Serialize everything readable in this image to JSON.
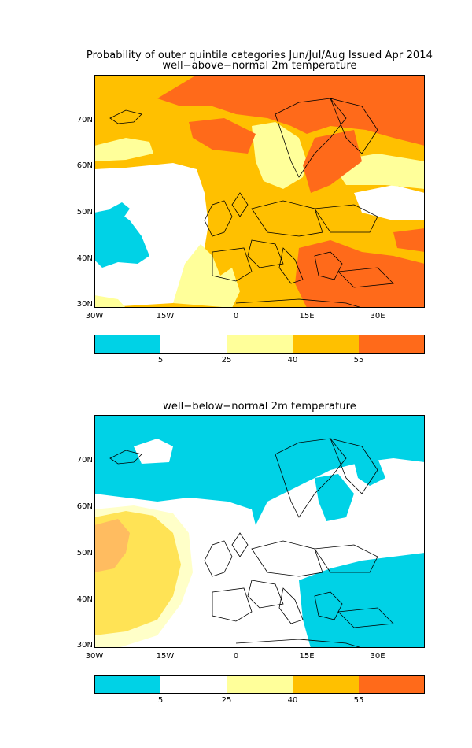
{
  "title_line1": "Probability of outer quintile categories Jun/Jul/Aug Issued Apr 2014",
  "panels": [
    {
      "subtitle": "well−above−normal 2m temperature"
    },
    {
      "subtitle": "well−below−normal 2m temperature"
    }
  ],
  "y_ticks": [
    "70N",
    "60N",
    "50N",
    "40N",
    "30N"
  ],
  "x_ticks": [
    "30W",
    "15W",
    "0",
    "15E",
    "30E"
  ],
  "colorbar": {
    "ticks": [
      "5",
      "25",
      "40",
      "55"
    ],
    "colors": [
      "#00d2e6",
      "#ffffff",
      "#ffff9a",
      "#ffc000",
      "#ff6a1a"
    ]
  }
}
